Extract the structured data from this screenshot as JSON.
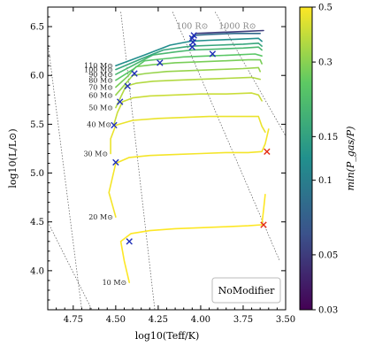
{
  "chart_data": {
    "type": "line",
    "title": "",
    "xlabel": "log10(Teff/K)",
    "ylabel": "log10(L/L⊙)",
    "xlim": [
      4.9,
      3.5
    ],
    "ylim": [
      3.6,
      6.7
    ],
    "x_ticks": [
      4.75,
      4.5,
      4.25,
      4.0,
      3.75,
      3.5
    ],
    "x_tick_labels": [
      "4.75",
      "4.50",
      "4.25",
      "4.00",
      "3.75",
      "3.50"
    ],
    "y_ticks": [
      4.0,
      4.5,
      5.0,
      5.5,
      6.0,
      6.5
    ],
    "y_tick_labels": [
      "4.0",
      "4.5",
      "5.0",
      "5.5",
      "6.0",
      "6.5"
    ],
    "grid": false,
    "annotation_box": "NoModifier",
    "radius_lines": [
      {
        "label": "100 R⊙",
        "x": [
          4.165,
          3.535
        ],
        "y": [
          6.65,
          4.1
        ]
      },
      {
        "label": "1000 R⊙",
        "x": [
          3.915,
          3.5
        ],
        "y": [
          6.65,
          5.38
        ]
      },
      {
        "label": "",
        "x": [
          4.9,
          4.7
        ],
        "y": [
          6.34,
          3.6
        ]
      },
      {
        "label": "",
        "x": [
          4.9,
          4.64
        ],
        "y": [
          4.5,
          3.6
        ]
      },
      {
        "label": "",
        "x": [
          4.47,
          4.27
        ],
        "y": [
          6.65,
          3.6
        ]
      }
    ],
    "colorbar": {
      "label": "min(P_gas/P)",
      "scale": "log",
      "range": [
        0.03,
        0.5
      ],
      "ticks": [
        0.5,
        0.3,
        0.15,
        0.1,
        0.05,
        0.03
      ],
      "tick_labels": [
        "0.5",
        "0.3",
        "0.15",
        "0.1",
        "0.05",
        "0.03"
      ],
      "colors": [
        "#440154",
        "#3b528b",
        "#21908d",
        "#5dc963",
        "#fde725"
      ]
    },
    "series": [
      {
        "name": "10 M⊙",
        "c": 0.5,
        "x": [
          4.42,
          4.45,
          4.47,
          4.41,
          4.3,
          4.15,
          4.0,
          3.85,
          3.72,
          3.64,
          3.63,
          3.62
        ],
        "y": [
          3.88,
          4.1,
          4.3,
          4.38,
          4.41,
          4.43,
          4.44,
          4.45,
          4.46,
          4.47,
          4.62,
          4.78
        ]
      },
      {
        "name": "20 M⊙",
        "c": 0.48,
        "x": [
          4.5,
          4.54,
          4.5,
          4.42,
          4.3,
          4.15,
          4.0,
          3.85,
          3.72,
          3.64,
          3.62,
          3.6
        ],
        "y": [
          4.55,
          4.8,
          5.1,
          5.16,
          5.18,
          5.19,
          5.2,
          5.21,
          5.21,
          5.22,
          5.3,
          5.45
        ]
      },
      {
        "name": "30 M⊙",
        "c": 0.46,
        "x": [
          4.53,
          4.53,
          4.5,
          4.4,
          4.25,
          4.1,
          3.95,
          3.8,
          3.66,
          3.64,
          3.62
        ],
        "y": [
          5.2,
          5.35,
          5.49,
          5.54,
          5.56,
          5.57,
          5.58,
          5.58,
          5.58,
          5.48,
          5.42
        ]
      },
      {
        "name": "40 M⊙",
        "c": 0.4,
        "x": [
          4.51,
          4.49,
          4.46,
          4.4,
          4.3,
          4.15,
          4.0,
          3.85,
          3.7,
          3.66,
          3.64
        ],
        "y": [
          5.5,
          5.62,
          5.73,
          5.77,
          5.79,
          5.8,
          5.81,
          5.81,
          5.82,
          5.8,
          5.74
        ]
      },
      {
        "name": "50 M⊙",
        "c": 0.36,
        "x": [
          4.5,
          4.47,
          4.44,
          4.38,
          4.28,
          4.15,
          4.0,
          3.85,
          3.7,
          3.65
        ],
        "y": [
          5.67,
          5.78,
          5.89,
          5.92,
          5.94,
          5.95,
          5.96,
          5.97,
          5.98,
          5.96
        ]
      },
      {
        "name": "60 M⊙",
        "c": 0.32,
        "x": [
          4.5,
          4.45,
          4.4,
          4.32,
          4.2,
          4.05,
          3.9,
          3.75,
          3.66,
          3.65
        ],
        "y": [
          5.8,
          5.9,
          6.0,
          6.02,
          6.04,
          6.05,
          6.06,
          6.07,
          6.08,
          6.04
        ]
      },
      {
        "name": "70 M⊙",
        "c": 0.28,
        "x": [
          4.5,
          4.43,
          4.38,
          4.28,
          4.15,
          4.0,
          3.85,
          3.72,
          3.65,
          3.64
        ],
        "y": [
          5.88,
          5.99,
          6.09,
          6.11,
          6.13,
          6.14,
          6.15,
          6.16,
          6.16,
          6.12
        ]
      },
      {
        "name": "80 M⊙",
        "c": 0.24,
        "x": [
          4.5,
          4.4,
          4.33,
          4.22,
          4.1,
          3.95,
          3.8,
          3.68,
          3.64
        ],
        "y": [
          5.95,
          6.06,
          6.15,
          6.17,
          6.19,
          6.2,
          6.21,
          6.22,
          6.2
        ]
      },
      {
        "name": "90 M⊙",
        "c": 0.2,
        "x": [
          4.5,
          4.38,
          4.28,
          4.15,
          4.05,
          3.9,
          3.75,
          3.66,
          3.64
        ],
        "y": [
          6.01,
          6.12,
          6.21,
          6.24,
          6.26,
          6.27,
          6.28,
          6.29,
          6.26
        ]
      },
      {
        "name": "100 M⊙",
        "c": 0.16,
        "x": [
          4.5,
          4.35,
          4.22,
          4.1,
          4.05,
          3.9,
          3.75,
          3.66,
          3.64
        ],
        "y": [
          6.06,
          6.17,
          6.26,
          6.29,
          6.3,
          6.31,
          6.32,
          6.33,
          6.3
        ]
      },
      {
        "name": "110 M⊙",
        "c": 0.12,
        "x": [
          4.5,
          4.33,
          4.18,
          4.06,
          3.95,
          3.8,
          3.66,
          3.64
        ],
        "y": [
          6.1,
          6.21,
          6.31,
          6.35,
          6.36,
          6.37,
          6.38,
          6.35
        ]
      },
      {
        "name": "",
        "c": 0.08,
        "x": [
          4.06,
          4.04,
          3.95,
          3.8,
          3.65
        ],
        "y": [
          6.38,
          6.41,
          6.42,
          6.43,
          6.43
        ]
      },
      {
        "name": "",
        "c": 0.05,
        "x": [
          4.04,
          4.03,
          3.9,
          3.75,
          3.63
        ],
        "y": [
          6.4,
          6.43,
          6.44,
          6.45,
          6.46
        ]
      }
    ],
    "markers": [
      {
        "symbol": "x",
        "color": "#1f2fb8",
        "x": 4.42,
        "y": 4.3
      },
      {
        "symbol": "x",
        "color": "#1f2fb8",
        "x": 4.5,
        "y": 5.11
      },
      {
        "symbol": "x",
        "color": "#1f2fb8",
        "x": 4.51,
        "y": 5.49
      },
      {
        "symbol": "x",
        "color": "#1f2fb8",
        "x": 4.475,
        "y": 5.73
      },
      {
        "symbol": "x",
        "color": "#1f2fb8",
        "x": 4.43,
        "y": 5.89
      },
      {
        "symbol": "x",
        "color": "#1f2fb8",
        "x": 4.39,
        "y": 6.02
      },
      {
        "symbol": "x",
        "color": "#1f2fb8",
        "x": 4.24,
        "y": 6.13
      },
      {
        "symbol": "x",
        "color": "#1f2fb8",
        "x": 3.93,
        "y": 6.22
      },
      {
        "symbol": "x",
        "color": "#1f2fb8",
        "x": 4.05,
        "y": 6.29
      },
      {
        "symbol": "x",
        "color": "#1f2fb8",
        "x": 4.045,
        "y": 6.34
      },
      {
        "symbol": "x",
        "color": "#1f2fb8",
        "x": 4.05,
        "y": 6.38
      },
      {
        "symbol": "x",
        "color": "#1f2fb8",
        "x": 4.04,
        "y": 6.41
      },
      {
        "symbol": "x",
        "color": "#e32b12",
        "x": 3.61,
        "y": 5.22
      },
      {
        "symbol": "x",
        "color": "#e32b12",
        "x": 3.63,
        "y": 4.47
      }
    ]
  }
}
